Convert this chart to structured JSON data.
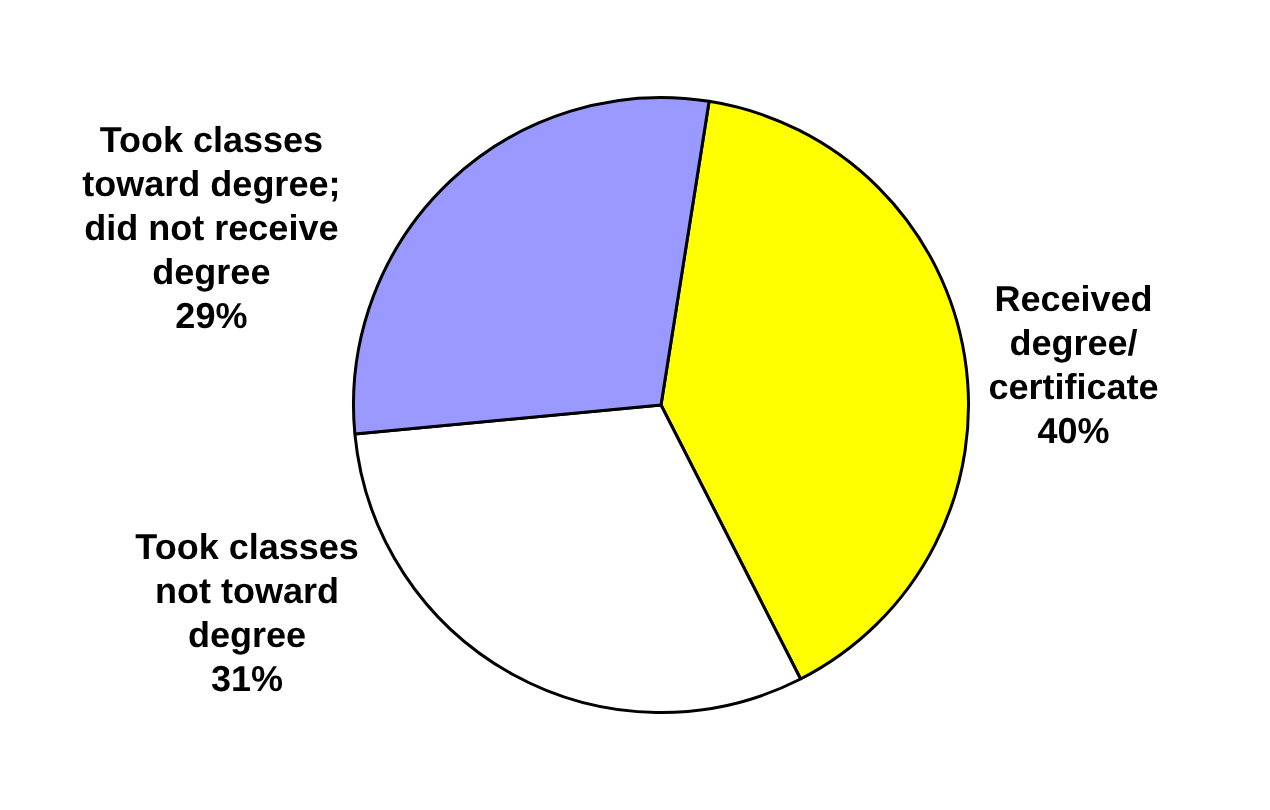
{
  "chart_data": {
    "type": "pie",
    "categories": [
      "Received\ndegree/\ncertificate",
      "Took classes\nnot toward\ndegree",
      "Took classes\ntoward degree;\ndid not receive\ndegree"
    ],
    "values": [
      40,
      31,
      29
    ],
    "colors": [
      "#ffff00",
      "#ffffff",
      "#9999ff"
    ],
    "value_labels": [
      "40%",
      "31%",
      "29%"
    ],
    "legend": false
  }
}
